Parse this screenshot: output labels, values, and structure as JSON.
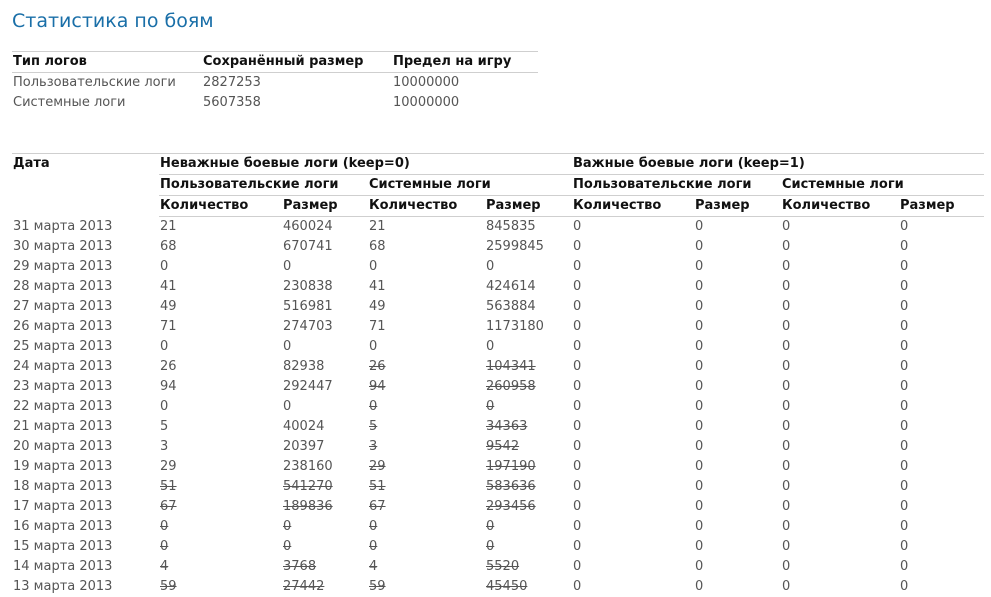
{
  "title": "Статистика по боям",
  "summary": {
    "headers": [
      "Тип логов",
      "Сохранённый размер",
      "Предел на игру"
    ],
    "rows": [
      [
        "Пользовательские логи",
        "2827253",
        "10000000"
      ],
      [
        "Системные логи",
        "5607358",
        "10000000"
      ]
    ]
  },
  "stats": {
    "date_header": "Дата",
    "groups": [
      "Неважные боевые логи (keep=0)",
      "Важные боевые логи (keep=1)"
    ],
    "subgroups": [
      "Пользовательские логи",
      "Системные логи",
      "Пользовательские логи",
      "Системные логи"
    ],
    "columns": [
      "Количество",
      "Размер",
      "Количество",
      "Размер",
      "Количество",
      "Размер",
      "Количество",
      "Размер"
    ],
    "rows": [
      {
        "date": "31 марта 2013",
        "values": [
          "21",
          "460024",
          "21",
          "845835",
          "0",
          "0",
          "0",
          "0"
        ],
        "struck": [
          false,
          false,
          false,
          false,
          false,
          false,
          false,
          false
        ]
      },
      {
        "date": "30 марта 2013",
        "values": [
          "68",
          "670741",
          "68",
          "2599845",
          "0",
          "0",
          "0",
          "0"
        ],
        "struck": [
          false,
          false,
          false,
          false,
          false,
          false,
          false,
          false
        ]
      },
      {
        "date": "29 марта 2013",
        "values": [
          "0",
          "0",
          "0",
          "0",
          "0",
          "0",
          "0",
          "0"
        ],
        "struck": [
          false,
          false,
          false,
          false,
          false,
          false,
          false,
          false
        ]
      },
      {
        "date": "28 марта 2013",
        "values": [
          "41",
          "230838",
          "41",
          "424614",
          "0",
          "0",
          "0",
          "0"
        ],
        "struck": [
          false,
          false,
          false,
          false,
          false,
          false,
          false,
          false
        ]
      },
      {
        "date": "27 марта 2013",
        "values": [
          "49",
          "516981",
          "49",
          "563884",
          "0",
          "0",
          "0",
          "0"
        ],
        "struck": [
          false,
          false,
          false,
          false,
          false,
          false,
          false,
          false
        ]
      },
      {
        "date": "26 марта 2013",
        "values": [
          "71",
          "274703",
          "71",
          "1173180",
          "0",
          "0",
          "0",
          "0"
        ],
        "struck": [
          false,
          false,
          false,
          false,
          false,
          false,
          false,
          false
        ]
      },
      {
        "date": "25 марта 2013",
        "values": [
          "0",
          "0",
          "0",
          "0",
          "0",
          "0",
          "0",
          "0"
        ],
        "struck": [
          false,
          false,
          false,
          false,
          false,
          false,
          false,
          false
        ]
      },
      {
        "date": "24 марта 2013",
        "values": [
          "26",
          "82938",
          "26",
          "104341",
          "0",
          "0",
          "0",
          "0"
        ],
        "struck": [
          false,
          false,
          true,
          true,
          false,
          false,
          false,
          false
        ]
      },
      {
        "date": "23 марта 2013",
        "values": [
          "94",
          "292447",
          "94",
          "260958",
          "0",
          "0",
          "0",
          "0"
        ],
        "struck": [
          false,
          false,
          true,
          true,
          false,
          false,
          false,
          false
        ]
      },
      {
        "date": "22 марта 2013",
        "values": [
          "0",
          "0",
          "0",
          "0",
          "0",
          "0",
          "0",
          "0"
        ],
        "struck": [
          false,
          false,
          true,
          true,
          false,
          false,
          false,
          false
        ]
      },
      {
        "date": "21 марта 2013",
        "values": [
          "5",
          "40024",
          "5",
          "34363",
          "0",
          "0",
          "0",
          "0"
        ],
        "struck": [
          false,
          false,
          true,
          true,
          false,
          false,
          false,
          false
        ]
      },
      {
        "date": "20 марта 2013",
        "values": [
          "3",
          "20397",
          "3",
          "9542",
          "0",
          "0",
          "0",
          "0"
        ],
        "struck": [
          false,
          false,
          true,
          true,
          false,
          false,
          false,
          false
        ]
      },
      {
        "date": "19 марта 2013",
        "values": [
          "29",
          "238160",
          "29",
          "197190",
          "0",
          "0",
          "0",
          "0"
        ],
        "struck": [
          false,
          false,
          true,
          true,
          false,
          false,
          false,
          false
        ]
      },
      {
        "date": "18 марта 2013",
        "values": [
          "51",
          "541270",
          "51",
          "583636",
          "0",
          "0",
          "0",
          "0"
        ],
        "struck": [
          true,
          true,
          true,
          true,
          false,
          false,
          false,
          false
        ]
      },
      {
        "date": "17 марта 2013",
        "values": [
          "67",
          "189836",
          "67",
          "293456",
          "0",
          "0",
          "0",
          "0"
        ],
        "struck": [
          true,
          true,
          true,
          true,
          false,
          false,
          false,
          false
        ]
      },
      {
        "date": "16 марта 2013",
        "values": [
          "0",
          "0",
          "0",
          "0",
          "0",
          "0",
          "0",
          "0"
        ],
        "struck": [
          true,
          true,
          true,
          true,
          false,
          false,
          false,
          false
        ]
      },
      {
        "date": "15 марта 2013",
        "values": [
          "0",
          "0",
          "0",
          "0",
          "0",
          "0",
          "0",
          "0"
        ],
        "struck": [
          true,
          true,
          true,
          true,
          false,
          false,
          false,
          false
        ]
      },
      {
        "date": "14 марта 2013",
        "values": [
          "4",
          "3768",
          "4",
          "5520",
          "0",
          "0",
          "0",
          "0"
        ],
        "struck": [
          true,
          true,
          true,
          true,
          false,
          false,
          false,
          false
        ]
      },
      {
        "date": "13 марта 2013",
        "values": [
          "59",
          "27442",
          "59",
          "45450",
          "0",
          "0",
          "0",
          "0"
        ],
        "struck": [
          true,
          true,
          true,
          true,
          false,
          false,
          false,
          false
        ]
      }
    ]
  }
}
